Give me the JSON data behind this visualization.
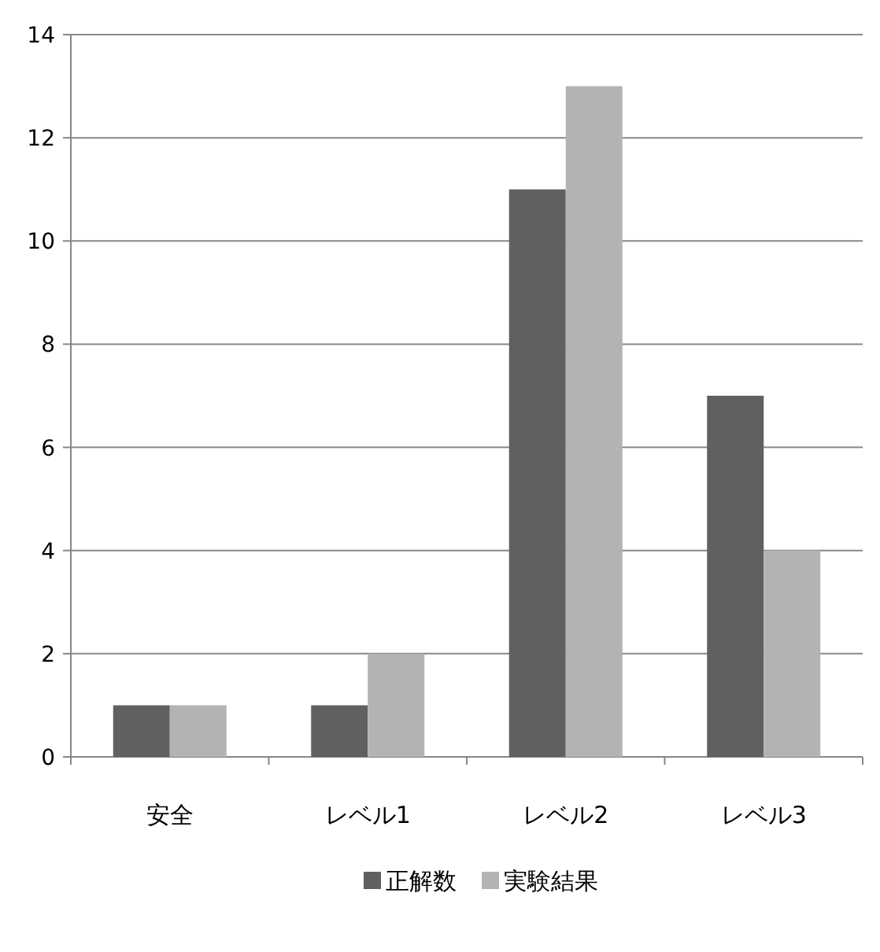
{
  "chart_data": {
    "type": "bar",
    "categories": [
      "安全",
      "レベル1",
      "レベル2",
      "レベル3"
    ],
    "series": [
      {
        "name": "正解数",
        "color": "#606060",
        "values": [
          1,
          1,
          11,
          7
        ]
      },
      {
        "name": "実験結果",
        "color": "#b3b3b3",
        "values": [
          1,
          2,
          13,
          4
        ]
      }
    ],
    "ylim": [
      0,
      14
    ],
    "yticks": [
      0,
      2,
      4,
      6,
      8,
      10,
      12,
      14
    ],
    "grid": "y",
    "legend": "bottom"
  }
}
